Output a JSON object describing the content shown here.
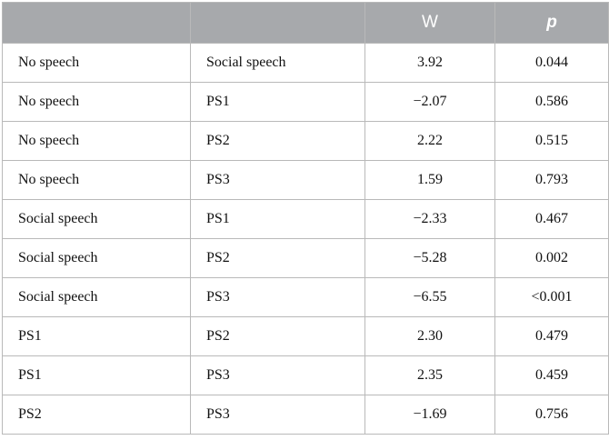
{
  "table": {
    "headers": [
      "",
      "",
      "W",
      "p"
    ],
    "rows": [
      [
        "No speech",
        "Social speech",
        "3.92",
        "0.044"
      ],
      [
        "No speech",
        "PS1",
        "−2.07",
        "0.586"
      ],
      [
        "No speech",
        "PS2",
        "2.22",
        "0.515"
      ],
      [
        "No speech",
        "PS3",
        "1.59",
        "0.793"
      ],
      [
        "Social speech",
        "PS1",
        "−2.33",
        "0.467"
      ],
      [
        "Social speech",
        "PS2",
        "−5.28",
        "0.002"
      ],
      [
        "Social speech",
        "PS3",
        "−6.55",
        "<0.001"
      ],
      [
        "PS1",
        "PS2",
        "2.30",
        "0.479"
      ],
      [
        "PS1",
        "PS3",
        "2.35",
        "0.459"
      ],
      [
        "PS2",
        "PS3",
        "−1.69",
        "0.756"
      ]
    ]
  }
}
